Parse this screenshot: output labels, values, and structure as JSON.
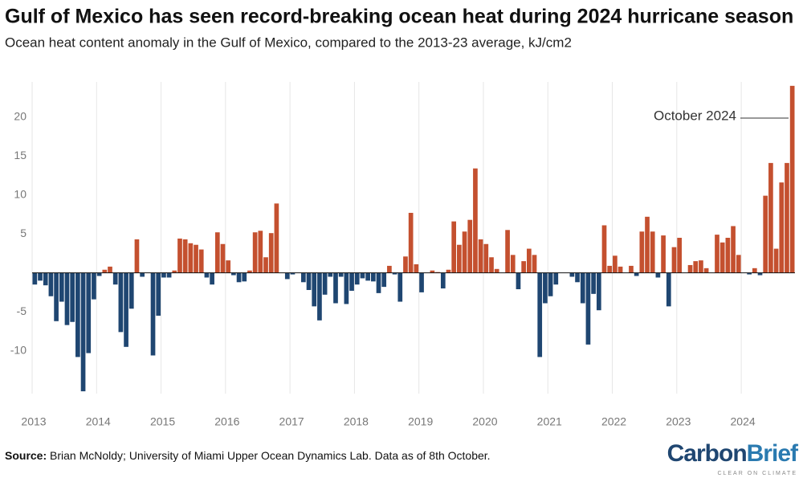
{
  "chart_data": {
    "type": "bar",
    "title": "Gulf of Mexico has seen record-breaking ocean heat during 2024 hurricane season",
    "subtitle": "Ocean heat content anomaly in the Gulf of Mexico, compared to the 2013-23 average, kJ/cm2",
    "annotation": "October 2024",
    "categories": [
      "2013",
      null,
      null,
      null,
      null,
      null,
      null,
      null,
      null,
      null,
      null,
      null,
      "2014",
      null,
      null,
      null,
      null,
      null,
      null,
      null,
      null,
      null,
      null,
      null,
      "2015",
      null,
      null,
      null,
      null,
      null,
      null,
      null,
      null,
      null,
      null,
      null,
      "2016",
      null,
      null,
      null,
      null,
      null,
      null,
      null,
      null,
      null,
      null,
      null,
      "2017",
      null,
      null,
      null,
      null,
      null,
      null,
      null,
      null,
      null,
      null,
      null,
      "2018",
      null,
      null,
      null,
      null,
      null,
      null,
      null,
      null,
      null,
      null,
      null,
      "2019",
      null,
      null,
      null,
      null,
      null,
      null,
      null,
      null,
      null,
      null,
      null,
      "2020",
      null,
      null,
      null,
      null,
      null,
      null,
      null,
      null,
      null,
      null,
      null,
      "2021",
      null,
      null,
      null,
      null,
      null,
      null,
      null,
      null,
      null,
      null,
      null,
      "2022",
      null,
      null,
      null,
      null,
      null,
      null,
      null,
      null,
      null,
      null,
      null,
      "2023",
      null,
      null,
      null,
      null,
      null,
      null,
      null,
      null,
      null,
      null,
      null,
      "2024",
      null,
      null,
      null,
      null,
      null,
      null,
      null,
      null,
      null
    ],
    "values": [
      -1.5,
      -1,
      -1.6,
      -3,
      -6.2,
      -3.7,
      -6.7,
      -6.3,
      -10.8,
      -15.2,
      -10.3,
      -3.4,
      -0.4,
      0.4,
      0.8,
      -1.5,
      -7.6,
      -9.5,
      -4.6,
      4.3,
      -0.5,
      0,
      -10.6,
      -5.5,
      -0.6,
      -0.6,
      0.3,
      4.4,
      4.3,
      3.8,
      3.6,
      3.0,
      -0.6,
      -1.5,
      5.2,
      3.7,
      1.6,
      -0.3,
      -1.2,
      -1.1,
      0.3,
      5.2,
      5.4,
      2.0,
      5.1,
      8.9,
      0,
      -0.8,
      -0.2,
      0,
      -1.2,
      -2.2,
      -4.3,
      -6.1,
      -2.8,
      -0.5,
      -3.9,
      -0.5,
      -4.0,
      -2.3,
      -1.5,
      -0.7,
      -1.0,
      -1.1,
      -2.6,
      -1.8,
      0.9,
      -0.2,
      -3.7,
      2.1,
      7.7,
      1.1,
      -2.5,
      0,
      0.3,
      0.1,
      -2.0,
      0.4,
      6.6,
      3.6,
      5.3,
      6.8,
      13.4,
      4.3,
      3.7,
      2.0,
      0.5,
      0,
      5.5,
      2.3,
      -2.1,
      1.5,
      3.1,
      2.3,
      -10.8,
      -3.9,
      -3.0,
      -1.5,
      0,
      0,
      -0.5,
      -1.2,
      -3.9,
      -9.2,
      -2.7,
      -4.8,
      6.1,
      0.9,
      2.2,
      0.8,
      0,
      0.9,
      -0.4,
      5.3,
      7.2,
      5.3,
      -0.6,
      4.8,
      -4.3,
      3.3,
      4.5,
      0,
      1.0,
      1.5,
      1.6,
      0.6,
      0,
      4.9,
      3.9,
      4.5,
      6.0,
      2.3,
      0,
      -0.2,
      0.6,
      -0.3,
      9.9,
      14.1,
      3.1,
      11.6,
      14.1,
      24
    ],
    "colors": {
      "positive": "#c4502f",
      "negative": "#1f4671"
    },
    "ylim": [
      -15.5,
      24.5
    ],
    "yticks": [
      -10,
      -5,
      5,
      10,
      15,
      20
    ],
    "grid": true
  },
  "footer": {
    "source_label": "Source:",
    "source_text": " Brian McNoldy; University of Miami Upper Ocean Dynamics Lab. Data as of 8th October.",
    "logo_carbon": "Carbon",
    "logo_brief": "Brief",
    "logo_tagline": "CLEAR ON CLIMATE"
  }
}
